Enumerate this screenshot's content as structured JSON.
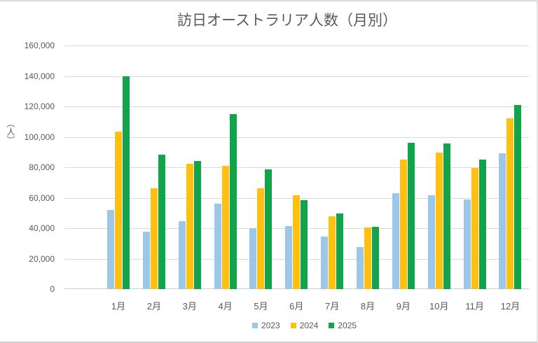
{
  "chart_data": {
    "type": "bar",
    "title": "訪日オーストラリア人数（月別）",
    "ylabel": "（人）",
    "xlabel": "",
    "categories": [
      "1月",
      "2月",
      "3月",
      "4月",
      "5月",
      "6月",
      "7月",
      "8月",
      "9月",
      "10月",
      "11月",
      "12月"
    ],
    "series": [
      {
        "name": "2023",
        "color": "#9DC7E8",
        "values": [
          52000,
          37500,
          44500,
          56000,
          40000,
          41500,
          34500,
          27500,
          63000,
          61500,
          59000,
          89000
        ]
      },
      {
        "name": "2024",
        "color": "#FFC010",
        "values": [
          103500,
          66000,
          82500,
          81000,
          66000,
          61500,
          48000,
          40500,
          85000,
          89500,
          79500,
          112000
        ]
      },
      {
        "name": "2025",
        "color": "#12A44A",
        "values": [
          140000,
          88500,
          84000,
          115000,
          78500,
          58500,
          49500,
          41000,
          96000,
          95500,
          85000,
          121000
        ]
      }
    ],
    "ylim": [
      0,
      160000
    ],
    "ytick_step": 20000,
    "ytick_labels": [
      "0",
      "20,000",
      "40,000",
      "60,000",
      "80,000",
      "100,000",
      "120,000",
      "140,000",
      "160,000"
    ],
    "grid": true,
    "legend_position": "bottom-center",
    "colors": {
      "text": "#595959",
      "gridline": "#D9D9D9",
      "axis_line": "#CFCFCF",
      "frame_border": "#D6D6D6",
      "background": "#FFFFFF"
    }
  }
}
